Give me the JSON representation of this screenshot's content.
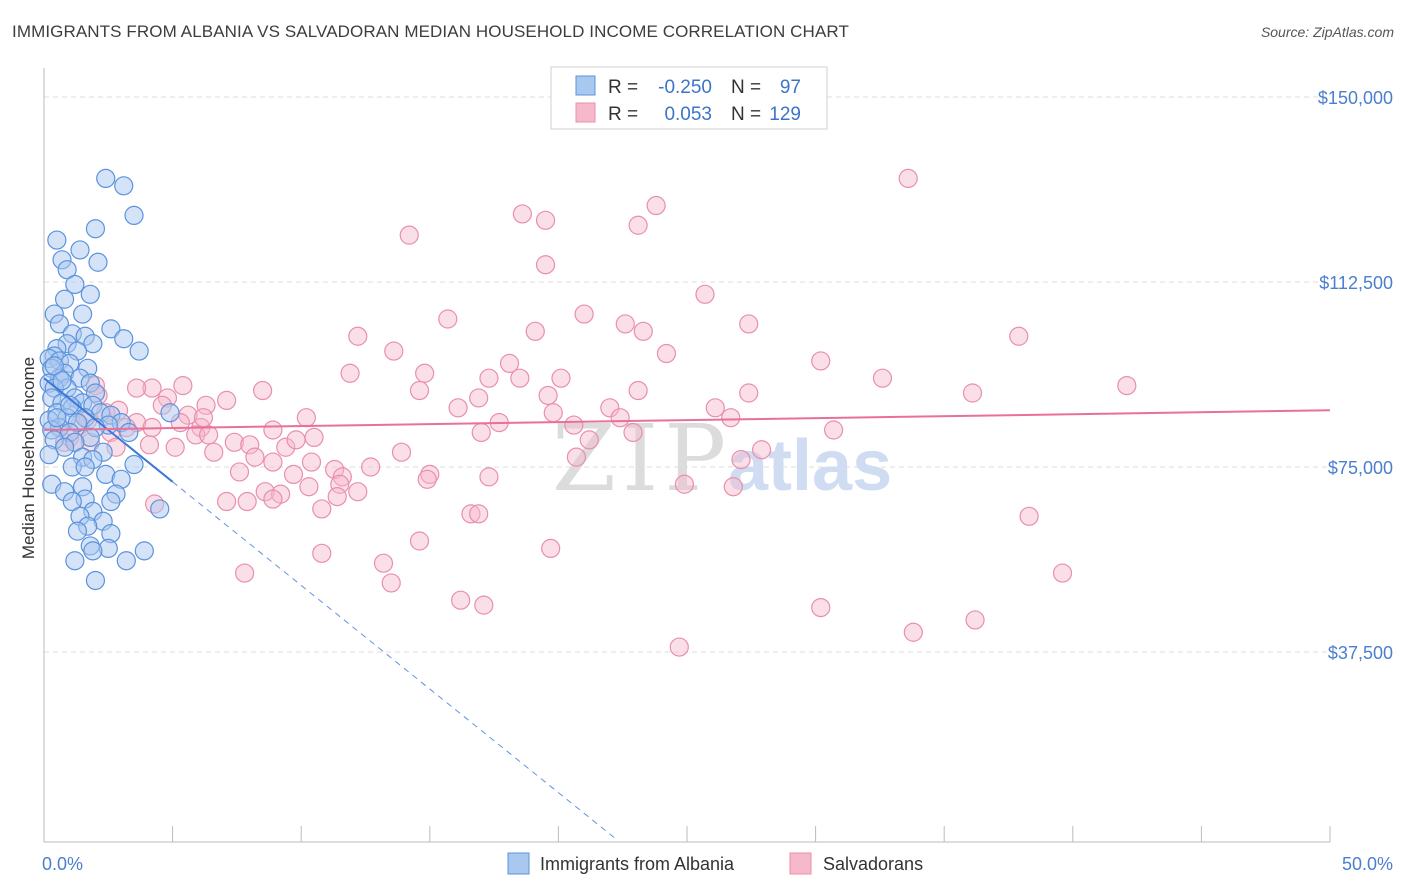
{
  "title": "IMMIGRANTS FROM ALBANIA VS SALVADORAN MEDIAN HOUSEHOLD INCOME CORRELATION CHART",
  "source": "Source: ZipAtlas.com",
  "watermark": {
    "zip": "ZIP",
    "atlas": "atlas"
  },
  "colors": {
    "blue_fill": "#a9c8f0",
    "blue_stroke": "#5b93dd",
    "blue_line": "#3b78d8",
    "pink_fill": "#f6b9cb",
    "pink_stroke": "#e98fab",
    "pink_line": "#e8709a",
    "grid": "#dddddd",
    "axis_text": "#4a7fcf"
  },
  "legend": {
    "rows": [
      {
        "r_label": "R =",
        "r_value": "-0.250",
        "n_label": "N =",
        "n_value": "97"
      },
      {
        "r_label": "R =",
        "r_value": "0.053",
        "n_label": "N =",
        "n_value": "129"
      }
    ]
  },
  "bottom_legend": [
    "Immigrants from Albania",
    "Salvadorans"
  ],
  "chart_data": {
    "type": "scatter",
    "title": "IMMIGRANTS FROM ALBANIA VS SALVADORAN MEDIAN HOUSEHOLD INCOME CORRELATION CHART",
    "xlabel": "",
    "ylabel": "Median Household Income",
    "xlim": [
      0,
      50
    ],
    "ylim": [
      0,
      155000
    ],
    "x_tick_labels": [
      "0.0%",
      "50.0%"
    ],
    "y_ticks": [
      37500,
      75000,
      112500,
      150000
    ],
    "y_tick_labels": [
      "$37,500",
      "$75,000",
      "$112,500",
      "$150,000"
    ],
    "series": [
      {
        "name": "Immigrants from Albania",
        "r": -0.25,
        "n": 97,
        "trend": {
          "x0": 0,
          "y0": 93000,
          "x1": 5,
          "y1": 72000,
          "dash_to_x": 22.2
        },
        "points": [
          [
            2.4,
            133500
          ],
          [
            2.0,
            123300
          ],
          [
            3.1,
            132000
          ],
          [
            3.5,
            126000
          ],
          [
            0.5,
            121000
          ],
          [
            1.4,
            119000
          ],
          [
            0.7,
            117000
          ],
          [
            2.1,
            116500
          ],
          [
            0.9,
            115000
          ],
          [
            1.2,
            112000
          ],
          [
            1.8,
            110000
          ],
          [
            0.8,
            109000
          ],
          [
            0.4,
            106000
          ],
          [
            1.5,
            106000
          ],
          [
            0.6,
            104000
          ],
          [
            2.6,
            103000
          ],
          [
            1.1,
            102000
          ],
          [
            1.6,
            101500
          ],
          [
            3.1,
            101000
          ],
          [
            1.9,
            100000
          ],
          [
            0.9,
            100000
          ],
          [
            0.5,
            99000
          ],
          [
            1.3,
            98500
          ],
          [
            3.7,
            98500
          ],
          [
            0.4,
            97500
          ],
          [
            0.2,
            97000
          ],
          [
            0.6,
            96500
          ],
          [
            1.0,
            96000
          ],
          [
            0.3,
            95000
          ],
          [
            1.7,
            95000
          ],
          [
            0.8,
            94000
          ],
          [
            1.4,
            93000
          ],
          [
            0.6,
            93000
          ],
          [
            0.2,
            92000
          ],
          [
            1.8,
            92000
          ],
          [
            0.9,
            91000
          ],
          [
            0.4,
            91000
          ],
          [
            2.0,
            90000
          ],
          [
            1.2,
            89000
          ],
          [
            0.3,
            89000
          ],
          [
            1.5,
            88000
          ],
          [
            0.7,
            88000
          ],
          [
            1.9,
            87500
          ],
          [
            1.1,
            87000
          ],
          [
            0.5,
            86000
          ],
          [
            2.2,
            86000
          ],
          [
            4.9,
            86000
          ],
          [
            2.6,
            85500
          ],
          [
            0.9,
            85000
          ],
          [
            1.6,
            85000
          ],
          [
            0.2,
            84500
          ],
          [
            3.0,
            84000
          ],
          [
            1.3,
            84000
          ],
          [
            2.5,
            83500
          ],
          [
            0.6,
            83000
          ],
          [
            2.0,
            83000
          ],
          [
            0.3,
            82500
          ],
          [
            1.0,
            82000
          ],
          [
            3.3,
            82000
          ],
          [
            1.8,
            81000
          ],
          [
            0.4,
            80500
          ],
          [
            1.2,
            80000
          ],
          [
            0.8,
            79000
          ],
          [
            2.3,
            78000
          ],
          [
            0.2,
            77500
          ],
          [
            1.5,
            77000
          ],
          [
            1.9,
            76500
          ],
          [
            3.5,
            75500
          ],
          [
            1.1,
            75000
          ],
          [
            1.6,
            75000
          ],
          [
            2.4,
            73500
          ],
          [
            3.0,
            72500
          ],
          [
            0.3,
            71500
          ],
          [
            1.5,
            71000
          ],
          [
            0.8,
            70000
          ],
          [
            2.8,
            69500
          ],
          [
            1.6,
            68500
          ],
          [
            1.1,
            68000
          ],
          [
            2.6,
            68000
          ],
          [
            4.5,
            66500
          ],
          [
            1.9,
            66000
          ],
          [
            1.4,
            65000
          ],
          [
            2.3,
            64000
          ],
          [
            1.7,
            63000
          ],
          [
            1.3,
            62000
          ],
          [
            2.6,
            61500
          ],
          [
            1.8,
            59000
          ],
          [
            2.5,
            58500
          ],
          [
            3.9,
            58000
          ],
          [
            1.9,
            58000
          ],
          [
            1.2,
            56000
          ],
          [
            3.2,
            56000
          ],
          [
            2.0,
            52000
          ],
          [
            0.4,
            95500
          ],
          [
            0.5,
            85000
          ],
          [
            0.7,
            92500
          ],
          [
            1.0,
            87500
          ]
        ]
      },
      {
        "name": "Salvadorans",
        "r": 0.053,
        "n": 129,
        "trend": {
          "x0": 0,
          "y0": 82500,
          "x1": 50,
          "y1": 86500
        },
        "points": [
          [
            33.6,
            133500
          ],
          [
            23.8,
            128000
          ],
          [
            18.6,
            126300
          ],
          [
            19.5,
            125000
          ],
          [
            23.1,
            124000
          ],
          [
            14.2,
            122000
          ],
          [
            19.5,
            116000
          ],
          [
            25.7,
            110000
          ],
          [
            21.0,
            106000
          ],
          [
            15.7,
            105000
          ],
          [
            22.6,
            104000
          ],
          [
            27.4,
            104000
          ],
          [
            23.3,
            102500
          ],
          [
            19.1,
            102500
          ],
          [
            12.2,
            101500
          ],
          [
            37.9,
            101500
          ],
          [
            13.6,
            98500
          ],
          [
            24.2,
            98000
          ],
          [
            30.2,
            96500
          ],
          [
            18.1,
            96000
          ],
          [
            11.9,
            94000
          ],
          [
            14.8,
            94000
          ],
          [
            17.3,
            93000
          ],
          [
            18.5,
            93000
          ],
          [
            20.1,
            93000
          ],
          [
            32.6,
            93000
          ],
          [
            42.1,
            91500
          ],
          [
            5.4,
            91500
          ],
          [
            4.2,
            91000
          ],
          [
            2.0,
            91500
          ],
          [
            3.6,
            91000
          ],
          [
            8.5,
            90500
          ],
          [
            14.6,
            90500
          ],
          [
            23.1,
            90500
          ],
          [
            36.1,
            90000
          ],
          [
            27.4,
            90000
          ],
          [
            19.6,
            89500
          ],
          [
            2.1,
            89500
          ],
          [
            4.8,
            89000
          ],
          [
            16.9,
            89000
          ],
          [
            7.1,
            88500
          ],
          [
            6.3,
            87500
          ],
          [
            22.0,
            87000
          ],
          [
            16.1,
            87000
          ],
          [
            26.1,
            87000
          ],
          [
            19.8,
            86000
          ],
          [
            2.4,
            86000
          ],
          [
            5.6,
            85500
          ],
          [
            26.7,
            85000
          ],
          [
            10.2,
            85000
          ],
          [
            17.7,
            84000
          ],
          [
            3.6,
            84000
          ],
          [
            5.3,
            84000
          ],
          [
            20.6,
            83500
          ],
          [
            1.4,
            83500
          ],
          [
            4.2,
            83000
          ],
          [
            6.1,
            83000
          ],
          [
            8.9,
            82500
          ],
          [
            30.7,
            82500
          ],
          [
            22.9,
            82000
          ],
          [
            17.0,
            82000
          ],
          [
            2.6,
            82000
          ],
          [
            5.9,
            81500
          ],
          [
            6.4,
            81500
          ],
          [
            10.5,
            81000
          ],
          [
            1.0,
            81000
          ],
          [
            21.2,
            80500
          ],
          [
            1.8,
            80000
          ],
          [
            7.4,
            80000
          ],
          [
            8.0,
            79500
          ],
          [
            0.8,
            80000
          ],
          [
            4.1,
            79500
          ],
          [
            5.1,
            79000
          ],
          [
            9.4,
            79000
          ],
          [
            27.9,
            78500
          ],
          [
            6.6,
            78000
          ],
          [
            13.9,
            78000
          ],
          [
            20.7,
            77000
          ],
          [
            8.2,
            77000
          ],
          [
            27.1,
            76500
          ],
          [
            1.2,
            80000
          ],
          [
            8.9,
            76000
          ],
          [
            10.4,
            76000
          ],
          [
            12.7,
            75000
          ],
          [
            11.3,
            74500
          ],
          [
            7.6,
            74000
          ],
          [
            15.0,
            73500
          ],
          [
            9.7,
            73500
          ],
          [
            11.6,
            73000
          ],
          [
            14.9,
            72500
          ],
          [
            11.5,
            71500
          ],
          [
            24.9,
            71500
          ],
          [
            26.8,
            71000
          ],
          [
            10.3,
            71000
          ],
          [
            8.6,
            70000
          ],
          [
            9.2,
            69500
          ],
          [
            11.4,
            69000
          ],
          [
            8.9,
            68500
          ],
          [
            7.9,
            68000
          ],
          [
            7.1,
            68000
          ],
          [
            4.3,
            67500
          ],
          [
            10.8,
            66500
          ],
          [
            16.6,
            65500
          ],
          [
            16.9,
            65500
          ],
          [
            38.3,
            65000
          ],
          [
            14.6,
            60000
          ],
          [
            19.7,
            58500
          ],
          [
            10.8,
            57500
          ],
          [
            13.2,
            55500
          ],
          [
            7.8,
            53500
          ],
          [
            39.6,
            53500
          ],
          [
            13.5,
            51500
          ],
          [
            16.2,
            48000
          ],
          [
            17.1,
            47000
          ],
          [
            30.2,
            46500
          ],
          [
            33.8,
            41500
          ],
          [
            36.2,
            44000
          ],
          [
            24.7,
            38500
          ],
          [
            2.9,
            86500
          ],
          [
            4.6,
            87500
          ],
          [
            0.6,
            83000
          ],
          [
            1.7,
            84500
          ],
          [
            2.8,
            79000
          ],
          [
            3.2,
            83000
          ],
          [
            6.2,
            85000
          ],
          [
            12.2,
            70000
          ],
          [
            17.3,
            73000
          ],
          [
            22.4,
            85000
          ],
          [
            9.8,
            80500
          ]
        ]
      }
    ]
  }
}
